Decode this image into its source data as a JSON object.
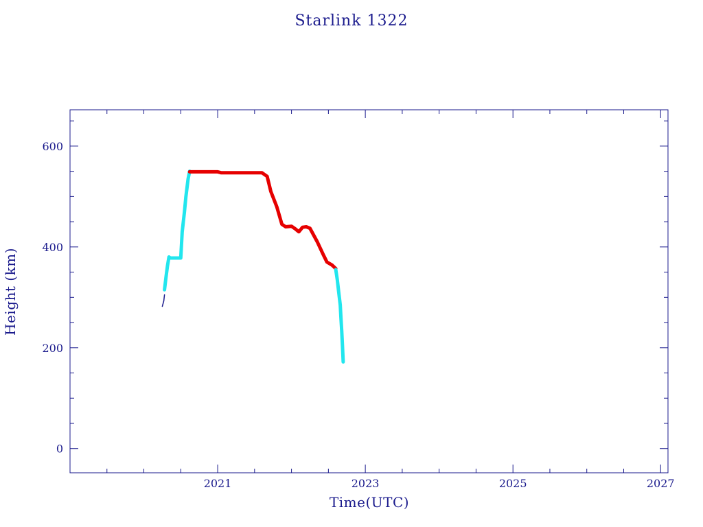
{
  "chart_data": {
    "type": "line",
    "title": "Starlink 1322",
    "xlabel": "Time(UTC)",
    "ylabel": "Height (km)",
    "xlim": [
      2019.0,
      2027.1
    ],
    "ylim": [
      -48,
      672
    ],
    "x_ticks": [
      2021,
      2023,
      2025,
      2027
    ],
    "y_ticks": [
      0,
      200,
      400,
      600
    ],
    "grid": false,
    "legend": "none",
    "colors": {
      "axis": "#1a1a8c",
      "ascent_decay": "#22e6ee",
      "operational": "#e60000",
      "initial": "#1a1a8c"
    },
    "series": [
      {
        "color_key": "initial",
        "x": [
          2020.25,
          2020.27,
          2020.28
        ],
        "y": [
          282,
          293,
          305
        ]
      },
      {
        "color_key": "ascent_decay",
        "x": [
          2020.28,
          2020.3,
          2020.32,
          2020.34,
          2020.36,
          2020.45,
          2020.5,
          2020.52,
          2020.55,
          2020.57,
          2020.6,
          2020.62
        ],
        "y": [
          315,
          340,
          362,
          380,
          378,
          378,
          378,
          430,
          470,
          500,
          535,
          550
        ]
      },
      {
        "color_key": "operational",
        "x": [
          2020.62,
          2020.75,
          2021.0,
          2021.05,
          2021.15,
          2021.3,
          2021.45,
          2021.6,
          2021.67,
          2021.72,
          2021.8,
          2021.87,
          2021.92,
          2022.0,
          2022.05,
          2022.1,
          2022.15,
          2022.2,
          2022.25,
          2022.35,
          2022.43,
          2022.48,
          2022.55,
          2022.6
        ],
        "y": [
          549,
          549,
          549,
          547,
          547,
          547,
          547,
          547,
          540,
          510,
          480,
          445,
          440,
          441,
          436,
          430,
          439,
          440,
          437,
          410,
          385,
          370,
          364,
          357
        ]
      },
      {
        "color_key": "ascent_decay",
        "x": [
          2022.6,
          2022.62,
          2022.64,
          2022.66,
          2022.67,
          2022.68,
          2022.69,
          2022.7
        ],
        "y": [
          355,
          335,
          310,
          285,
          260,
          235,
          205,
          172
        ]
      }
    ]
  }
}
